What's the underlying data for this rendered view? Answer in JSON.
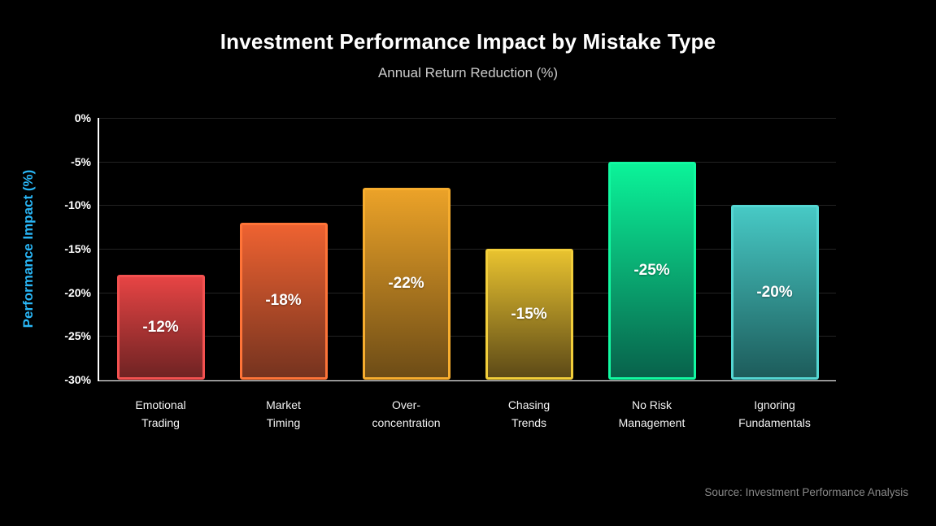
{
  "chart_data": {
    "type": "bar",
    "title": "Investment Performance Impact by Mistake Type",
    "subtitle": "Annual Return Reduction (%)",
    "ylabel": "Performance Impact (%)",
    "ylim": [
      -30,
      0
    ],
    "yticks": [
      "0%",
      "-5%",
      "-10%",
      "-15%",
      "-20%",
      "-25%",
      "-30%"
    ],
    "grid": "horizontal",
    "legend": "none",
    "categories": [
      "Emotional\nTrading",
      "Market\nTiming",
      "Over-\nconcentration",
      "Chasing\nTrends",
      "No Risk\nManagement",
      "Ignoring\nFundamentals"
    ],
    "values": [
      -12,
      -18,
      -22,
      -15,
      -25,
      -20
    ],
    "bar_value_labels": [
      "-12%",
      "-18%",
      "-22%",
      "-15%",
      "-25%",
      "-20%"
    ],
    "bar_baseline": -30,
    "bar_colors": [
      {
        "top": "#e64444",
        "bottom": "#6f2323",
        "border": "#f35150"
      },
      {
        "top": "#ee6231",
        "bottom": "#75331f",
        "border": "#ff7438"
      },
      {
        "top": "#eba228",
        "bottom": "#6d4c16",
        "border": "#f7ad2e"
      },
      {
        "top": "#e8c22f",
        "bottom": "#5d4a17",
        "border": "#f2ce3a"
      },
      {
        "top": "#0bf399",
        "bottom": "#08624b",
        "border": "#12f9a1"
      },
      {
        "top": "#47c9c5",
        "bottom": "#1d5c5b",
        "border": "#54d6d2"
      }
    ]
  },
  "colors": {
    "background": "#000000",
    "title": "#ffffff",
    "subtitle": "#cccccc",
    "axis": "#ffffff",
    "tick_labels": "#ffffff",
    "y_axis_title": "#29b6f6",
    "gridline": "#232323",
    "bar_label": "#ffffff",
    "source": "#8a8a8a"
  },
  "source": "Source: Investment Performance Analysis"
}
